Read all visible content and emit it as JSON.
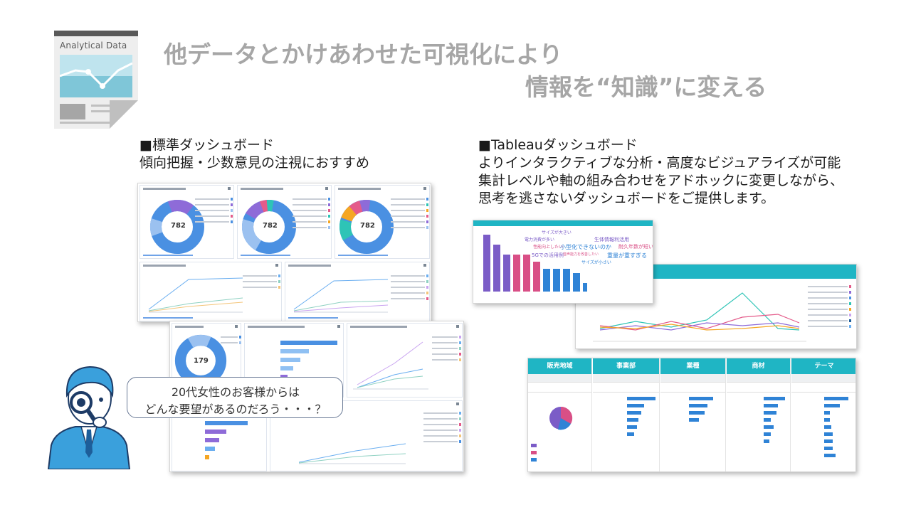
{
  "header": {
    "logo_label": "Analytical Data",
    "title_line1": "他データとかけあわせた可視化により",
    "title_line2": "情報を“知識”に変える"
  },
  "left_section": {
    "heading": "■標準ダッシュボード",
    "description": "傾向把握・少数意見の注視におすすめ",
    "donuts": [
      {
        "value": "782"
      },
      {
        "value": "782"
      },
      {
        "value": "782"
      },
      {
        "value": "179"
      }
    ]
  },
  "right_section": {
    "heading": "■Tableauダッシュボード",
    "lines": [
      "よりインタラクティブな分析・高度なビジュアライズが可能",
      "集計レベルや軸の組み合わせをアドホックに変更しながら、",
      "思考を逃さないダッシュボードをご提供します。"
    ],
    "word_cloud": [
      "サイズが大きい",
      "電力消費が多い",
      "生体情報利活用",
      "性能向上したい",
      "小型化できないのか",
      "耐久年数が短い",
      "5Gでの活用例",
      "重量が重すぎる",
      "サイズが小さい",
      "音声能力を改善したい"
    ],
    "kpi_columns": [
      "販売地域",
      "事業部",
      "業種",
      "商材",
      "テーマ"
    ]
  },
  "bubble": {
    "line1": "20代女性のお客様からは",
    "line2": "どんな要望があるのだろう・・・？"
  },
  "colors": {
    "title_gray": "#a6a6a6",
    "tableau_teal": "#1fb5c4",
    "donut_blue": "#4a90e2",
    "donut_purple": "#8e6bd8",
    "character_blue": "#3aa0dc"
  }
}
